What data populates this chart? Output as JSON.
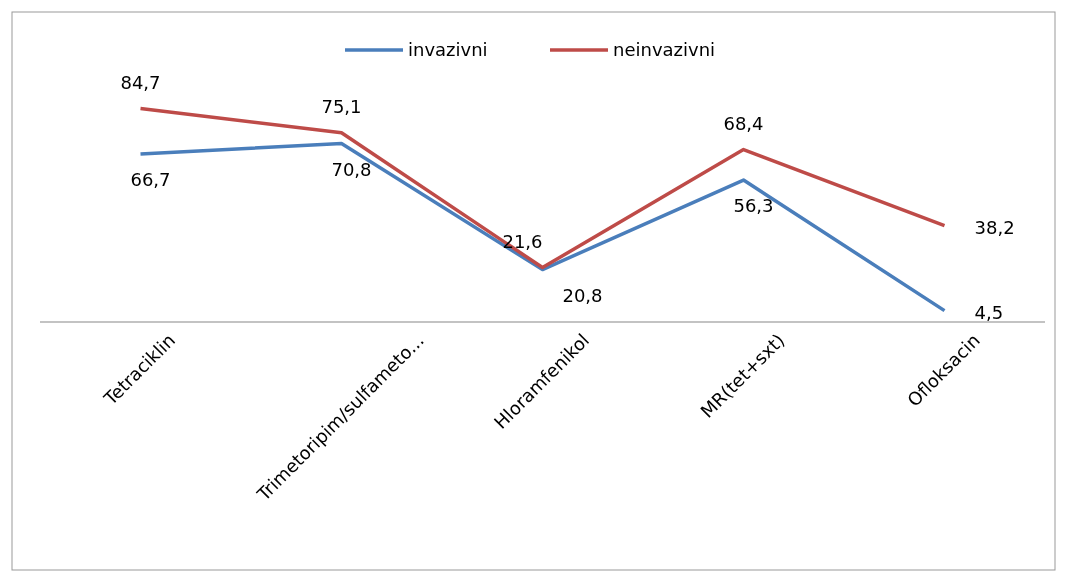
{
  "chart_data": {
    "type": "line",
    "categories": [
      "Tetraciklin",
      "Trimetoripim/sulfameto...",
      "Hloramfenikol",
      "MR(tet+sxt)",
      "Ofloksacin"
    ],
    "series": [
      {
        "name": "invazivni",
        "color": "#4a7ebb",
        "values": [
          66.7,
          70.8,
          20.8,
          56.3,
          4.5
        ],
        "value_labels": [
          "66,7",
          "70,8",
          "20,8",
          "56,3",
          "4,5"
        ]
      },
      {
        "name": "neinvazivni",
        "color": "#be4b48",
        "values": [
          84.7,
          75.1,
          21.6,
          68.4,
          38.2
        ],
        "value_labels": [
          "84,7",
          "75,1",
          "21,6",
          "68,4",
          "38,2"
        ]
      }
    ],
    "legend": "top",
    "marker": "none",
    "line_style": "solid"
  }
}
